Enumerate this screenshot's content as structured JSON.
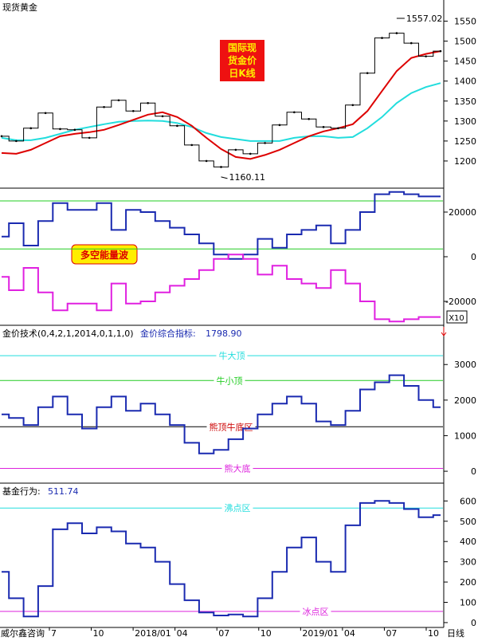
{
  "window": {
    "title": "现货黄金",
    "footer_source": "威尔鑫咨询",
    "period_label": "日线",
    "x_ticks": [
      "7",
      "10",
      "2018/01",
      "04",
      "07",
      "10",
      "2019/01",
      "04",
      "07",
      "10"
    ]
  },
  "colors": {
    "price_line": "#000000",
    "ma_short": "#dd0000",
    "ma_long": "#22dddd",
    "blue_line": "#1a2ab0",
    "magenta_line": "#e020e0",
    "green_ref": "#22cc22",
    "cyan_ref": "#22dddd",
    "black_ref": "#000000",
    "magenta_ref": "#dd22dd",
    "badge_red_bg": "#ee1111",
    "badge_yellow_text": "#ffee00",
    "badge_yellow_bg": "#ffee00",
    "badge_red_text": "#dd0000"
  },
  "chart_data": [
    {
      "type": "line",
      "panel": "price",
      "title": "现货黄金",
      "badge": [
        "国际现",
        "货金价",
        "日K线"
      ],
      "ylim": [
        1140,
        1575
      ],
      "y_ticks": [
        1200,
        1250,
        1300,
        1350,
        1400,
        1450,
        1500,
        1550
      ],
      "annotations": [
        {
          "label": "1557.02",
          "value": 1557.02,
          "kind": "high"
        },
        {
          "label": "1160.11",
          "value": 1160.11,
          "kind": "low"
        }
      ],
      "x": [
        "2017-06",
        "2017-07",
        "2017-08",
        "2017-09",
        "2017-10",
        "2017-11",
        "2017-12",
        "2018-01",
        "2018-02",
        "2018-03",
        "2018-04",
        "2018-05",
        "2018-06",
        "2018-07",
        "2018-08",
        "2018-09",
        "2018-10",
        "2018-11",
        "2018-12",
        "2019-01",
        "2019-02",
        "2019-03",
        "2019-04",
        "2019-05",
        "2019-06",
        "2019-07",
        "2019-08",
        "2019-09",
        "2019-10",
        "2019-11",
        "2019-12"
      ],
      "series": [
        {
          "values": [
            1262,
            1250,
            1282,
            1320,
            1280,
            1278,
            1258,
            1335,
            1352,
            1325,
            1345,
            1312,
            1288,
            1240,
            1200,
            1185,
            1228,
            1218,
            1245,
            1290,
            1322,
            1305,
            1285,
            1282,
            1340,
            1420,
            1508,
            1520,
            1495,
            1462,
            1475
          ]
        },
        {
          "values": [
            1220,
            1218,
            1228,
            1245,
            1262,
            1268,
            1272,
            1278,
            1290,
            1303,
            1316,
            1322,
            1310,
            1288,
            1258,
            1230,
            1210,
            1205,
            1215,
            1228,
            1245,
            1262,
            1274,
            1282,
            1292,
            1325,
            1375,
            1425,
            1458,
            1468,
            1475
          ]
        },
        {
          "values": [
            1258,
            1252,
            1252,
            1258,
            1268,
            1278,
            1285,
            1292,
            1298,
            1300,
            1301,
            1300,
            1295,
            1285,
            1270,
            1260,
            1255,
            1250,
            1250,
            1250,
            1258,
            1262,
            1262,
            1258,
            1260,
            1282,
            1310,
            1345,
            1370,
            1385,
            1395
          ]
        }
      ]
    },
    {
      "type": "line",
      "panel": "energy",
      "badge": "多空能量波",
      "legend": "X10",
      "ylim": [
        -30000,
        30000
      ],
      "y_ticks": [
        -20000,
        0,
        20000
      ],
      "reference_lines": [
        25000,
        3500
      ],
      "x": [
        "2017-06",
        "2017-07",
        "2017-08",
        "2017-09",
        "2017-10",
        "2017-11",
        "2017-12",
        "2018-01",
        "2018-02",
        "2018-03",
        "2018-04",
        "2018-05",
        "2018-06",
        "2018-07",
        "2018-08",
        "2018-09",
        "2018-10",
        "2018-11",
        "2018-12",
        "2019-01",
        "2019-02",
        "2019-03",
        "2019-04",
        "2019-05",
        "2019-06",
        "2019-07",
        "2019-08",
        "2019-09",
        "2019-10",
        "2019-11",
        "2019-12"
      ],
      "series": [
        {
          "values": [
            9000,
            15000,
            5000,
            16000,
            24000,
            21000,
            21000,
            24000,
            12000,
            21000,
            20000,
            16000,
            13000,
            10000,
            6000,
            1000,
            -1000,
            1000,
            8000,
            4000,
            10000,
            12000,
            14000,
            6000,
            12000,
            20000,
            28000,
            29000,
            28000,
            27000,
            27000
          ]
        },
        {
          "values": [
            -9000,
            -15000,
            -5000,
            -16000,
            -24000,
            -21000,
            -21000,
            -24000,
            -12000,
            -21000,
            -20000,
            -16000,
            -13000,
            -10000,
            -6000,
            -1000,
            1000,
            -1000,
            -8000,
            -4000,
            -10000,
            -12000,
            -14000,
            -6000,
            -12000,
            -20000,
            -28000,
            -29000,
            -28000,
            -27000,
            -27000
          ]
        }
      ]
    },
    {
      "type": "line",
      "panel": "technique",
      "title": "金价技术(0,4,2,1,2014,0,1,1,0)",
      "indicator_label": "金价综合指标:",
      "indicator_value": "1798.90",
      "ylim": [
        -200,
        3700
      ],
      "y_ticks": [
        0,
        1000,
        2000,
        3000
      ],
      "reference_lines": [
        {
          "label": "牛大顶",
          "value": 3250
        },
        {
          "label": "牛小顶",
          "value": 2550
        },
        {
          "label": "熊顶牛底区",
          "value": 1250
        },
        {
          "label": "熊大底",
          "value": 80
        }
      ],
      "x": [
        "2017-06",
        "2017-07",
        "2017-08",
        "2017-09",
        "2017-10",
        "2017-11",
        "2017-12",
        "2018-01",
        "2018-02",
        "2018-03",
        "2018-04",
        "2018-05",
        "2018-06",
        "2018-07",
        "2018-08",
        "2018-09",
        "2018-10",
        "2018-11",
        "2018-12",
        "2019-01",
        "2019-02",
        "2019-03",
        "2019-04",
        "2019-05",
        "2019-06",
        "2019-07",
        "2019-08",
        "2019-09",
        "2019-10",
        "2019-11",
        "2019-12"
      ],
      "series": [
        {
          "values": [
            1600,
            1500,
            1300,
            1800,
            2100,
            1600,
            1200,
            1800,
            2100,
            1700,
            1900,
            1600,
            1300,
            800,
            500,
            600,
            900,
            1200,
            1600,
            1900,
            2100,
            1900,
            1400,
            1300,
            1700,
            2300,
            2500,
            2700,
            2400,
            2000,
            1800
          ]
        }
      ]
    },
    {
      "type": "line",
      "panel": "fund",
      "title": "基金行为:",
      "indicator_value": "511.74",
      "ylim": [
        -20,
        680
      ],
      "y_ticks": [
        0,
        100,
        200,
        300,
        400,
        500,
        600
      ],
      "reference_lines": [
        {
          "label": "沸点区",
          "value": 565
        },
        {
          "label": "冰点区",
          "value": 55
        }
      ],
      "x": [
        "2017-06",
        "2017-07",
        "2017-08",
        "2017-09",
        "2017-10",
        "2017-11",
        "2017-12",
        "2018-01",
        "2018-02",
        "2018-03",
        "2018-04",
        "2018-05",
        "2018-06",
        "2018-07",
        "2018-08",
        "2018-09",
        "2018-10",
        "2018-11",
        "2018-12",
        "2019-01",
        "2019-02",
        "2019-03",
        "2019-04",
        "2019-05",
        "2019-06",
        "2019-07",
        "2019-08",
        "2019-09",
        "2019-10",
        "2019-11",
        "2019-12"
      ],
      "series": [
        {
          "values": [
            250,
            120,
            30,
            180,
            460,
            490,
            440,
            470,
            450,
            390,
            370,
            300,
            190,
            110,
            50,
            35,
            40,
            30,
            120,
            250,
            370,
            420,
            300,
            250,
            480,
            590,
            600,
            590,
            560,
            520,
            530
          ]
        }
      ]
    }
  ]
}
